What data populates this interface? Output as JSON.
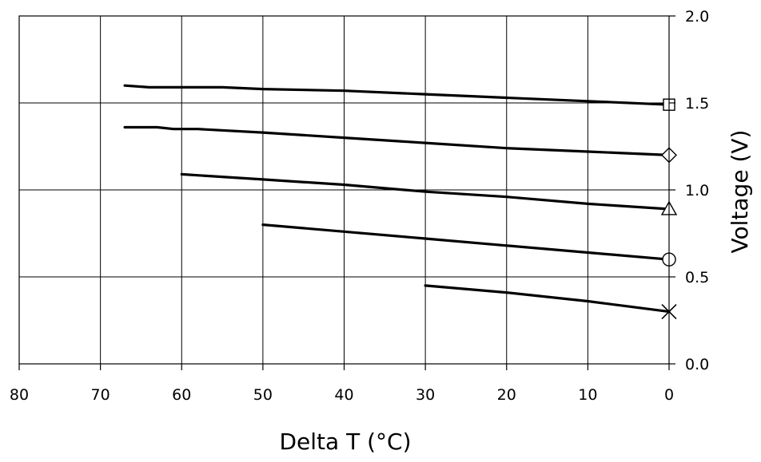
{
  "chart_data": {
    "type": "line",
    "title": "",
    "xlabel": "Delta T (°C)",
    "ylabel": "Voltage (V)",
    "xlim": [
      80,
      0
    ],
    "ylim": [
      0,
      2.0
    ],
    "x_reversed": true,
    "y_axis_side": "right",
    "grid": true,
    "x_ticks": [
      80,
      70,
      60,
      50,
      40,
      30,
      20,
      10,
      0
    ],
    "y_ticks": [
      0.0,
      0.5,
      1.0,
      1.5,
      2.0
    ],
    "x_tick_labels": [
      "80",
      "70",
      "60",
      "50",
      "40",
      "30",
      "20",
      "10",
      "0"
    ],
    "y_tick_labels": [
      "0.0",
      "0.5",
      "1.0",
      "1.5",
      "2.0"
    ],
    "series": [
      {
        "marker": "square",
        "color": "#000000",
        "x": [
          67,
          64,
          60,
          55,
          50,
          40,
          30,
          20,
          10,
          0
        ],
        "y": [
          1.6,
          1.59,
          1.59,
          1.59,
          1.58,
          1.57,
          1.55,
          1.53,
          1.51,
          1.49
        ]
      },
      {
        "marker": "diamond",
        "color": "#000000",
        "x": [
          67,
          63,
          61,
          58,
          50,
          40,
          30,
          20,
          10,
          0
        ],
        "y": [
          1.36,
          1.36,
          1.35,
          1.35,
          1.33,
          1.3,
          1.27,
          1.24,
          1.22,
          1.2
        ]
      },
      {
        "marker": "triangle",
        "color": "#000000",
        "x": [
          60,
          50,
          40,
          30,
          20,
          10,
          0
        ],
        "y": [
          1.09,
          1.06,
          1.03,
          0.99,
          0.96,
          0.92,
          0.89
        ]
      },
      {
        "marker": "circle",
        "color": "#000000",
        "x": [
          50,
          40,
          30,
          20,
          10,
          0
        ],
        "y": [
          0.8,
          0.76,
          0.72,
          0.68,
          0.64,
          0.6
        ]
      },
      {
        "marker": "x",
        "color": "#000000",
        "x": [
          30,
          20,
          10,
          0
        ],
        "y": [
          0.45,
          0.41,
          0.36,
          0.3
        ]
      }
    ]
  }
}
